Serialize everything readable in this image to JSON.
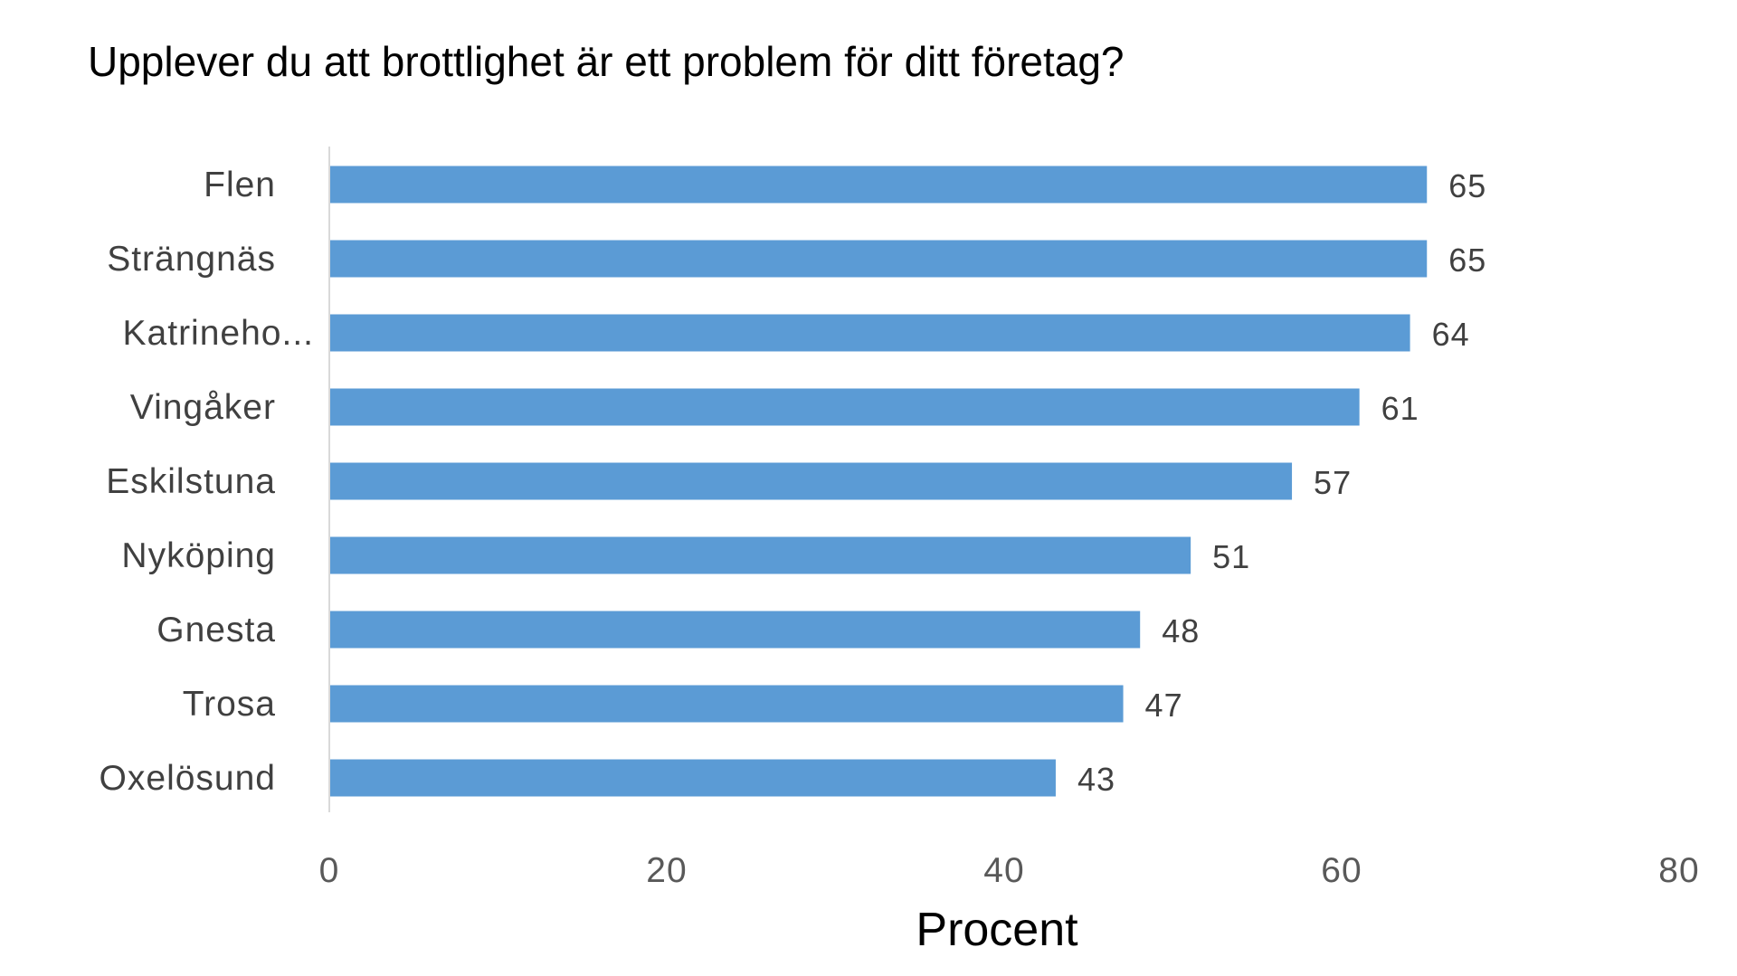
{
  "chart_data": {
    "type": "bar",
    "orientation": "horizontal",
    "title": "Upplever du att brottlighet är ett problem för ditt företag?",
    "xlabel": "Procent",
    "ylabel": "",
    "categories": [
      "Flen",
      "Strängnäs",
      "Katrineho...",
      "Vingåker",
      "Eskilstuna",
      "Nyköping",
      "Gnesta",
      "Trosa",
      "Oxelösund"
    ],
    "values": [
      65,
      65,
      64,
      61,
      57,
      51,
      48,
      47,
      43
    ],
    "data_labels": [
      "65",
      "65",
      "64",
      "61",
      "57",
      "51",
      "48",
      "47",
      "43"
    ],
    "xlim": [
      0,
      80
    ],
    "xticks": [
      "0",
      "20",
      "40",
      "60",
      "80"
    ],
    "grid": false,
    "legend": "none",
    "bar_color": "#5b9bd5"
  }
}
